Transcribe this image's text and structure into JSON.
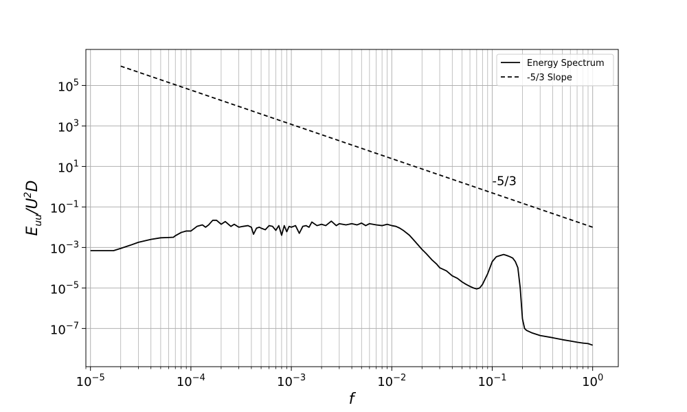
{
  "chart_data": {
    "type": "line",
    "title": "",
    "xlabel": "f",
    "ylabel": "E_uu/U^2D",
    "x_scale": "log",
    "y_scale": "log",
    "xlim": [
      9e-06,
      1.8
    ],
    "ylim": [
      1.3e-09,
      6000000.0
    ],
    "grid": {
      "x": "major+minor",
      "y": "major"
    },
    "legend_position": "top-right",
    "x_ticks": [
      {
        "value": 1e-05,
        "base": "10",
        "exp": "−5"
      },
      {
        "value": 0.0001,
        "base": "10",
        "exp": "−4"
      },
      {
        "value": 0.001,
        "base": "10",
        "exp": "−3"
      },
      {
        "value": 0.01,
        "base": "10",
        "exp": "−2"
      },
      {
        "value": 0.1,
        "base": "10",
        "exp": "−1"
      },
      {
        "value": 1,
        "base": "10",
        "exp": "0"
      }
    ],
    "y_ticks": [
      {
        "value": 1e-07,
        "base": "10",
        "exp": "−7"
      },
      {
        "value": 1e-05,
        "base": "10",
        "exp": "−5"
      },
      {
        "value": 0.001,
        "base": "10",
        "exp": "−3"
      },
      {
        "value": 0.1,
        "base": "10",
        "exp": "−1"
      },
      {
        "value": 10,
        "base": "10",
        "exp": "1"
      },
      {
        "value": 1000,
        "base": "10",
        "exp": "3"
      },
      {
        "value": 100000,
        "base": "10",
        "exp": "5"
      }
    ],
    "series": [
      {
        "name": "Energy Spectrum",
        "style": "solid",
        "color": "#000000",
        "x": [
          1e-05,
          1.7e-05,
          2e-05,
          2.5e-05,
          3e-05,
          4e-05,
          5e-05,
          6e-05,
          6.7e-05,
          7e-05,
          8e-05,
          9e-05,
          0.0001,
          0.000115,
          0.00013,
          0.00014,
          0.00015,
          0.000165,
          0.00018,
          0.0002,
          0.00022,
          0.00025,
          0.00027,
          0.0003,
          0.00033,
          0.00037,
          0.0004,
          0.00042,
          0.00045,
          0.00048,
          0.0005,
          0.00055,
          0.0006,
          0.00065,
          0.0007,
          0.00075,
          0.0008,
          0.00085,
          0.0009,
          0.00095,
          0.001,
          0.0011,
          0.0012,
          0.0013,
          0.0014,
          0.0015,
          0.0016,
          0.0018,
          0.002,
          0.0022,
          0.0025,
          0.0028,
          0.003,
          0.0035,
          0.004,
          0.0045,
          0.005,
          0.0055,
          0.006,
          0.007,
          0.008,
          0.009,
          0.01,
          0.011,
          0.012,
          0.013,
          0.015,
          0.017,
          0.02,
          0.022,
          0.025,
          0.028,
          0.03,
          0.035,
          0.04,
          0.045,
          0.05,
          0.055,
          0.06,
          0.065,
          0.07,
          0.075,
          0.08,
          0.09,
          0.1,
          0.11,
          0.12,
          0.13,
          0.14,
          0.15,
          0.16,
          0.17,
          0.18,
          0.19,
          0.2,
          0.21,
          0.22,
          0.25,
          0.3,
          0.4,
          0.5,
          0.6,
          0.7,
          0.8,
          0.9,
          1.0
        ],
        "y": [
          0.0007,
          0.0007,
          0.0009,
          0.0013,
          0.0018,
          0.0025,
          0.003,
          0.0031,
          0.0032,
          0.0038,
          0.0055,
          0.0065,
          0.0065,
          0.011,
          0.013,
          0.01,
          0.013,
          0.022,
          0.022,
          0.014,
          0.019,
          0.011,
          0.014,
          0.01,
          0.011,
          0.012,
          0.01,
          0.0045,
          0.009,
          0.01,
          0.009,
          0.0075,
          0.012,
          0.011,
          0.007,
          0.012,
          0.004,
          0.012,
          0.006,
          0.011,
          0.01,
          0.012,
          0.005,
          0.011,
          0.012,
          0.01,
          0.018,
          0.012,
          0.014,
          0.012,
          0.02,
          0.012,
          0.015,
          0.013,
          0.015,
          0.013,
          0.016,
          0.012,
          0.015,
          0.013,
          0.012,
          0.014,
          0.012,
          0.011,
          0.009,
          0.007,
          0.004,
          0.002,
          0.0008,
          0.0005,
          0.00025,
          0.00015,
          0.0001,
          7e-05,
          4e-05,
          3e-05,
          2e-05,
          1.5e-05,
          1.2e-05,
          1e-05,
          9e-06,
          1e-05,
          1.5e-05,
          5e-05,
          0.0002,
          0.00035,
          0.0004,
          0.00045,
          0.0004,
          0.00035,
          0.0003,
          0.0002,
          0.0001,
          1e-05,
          3e-07,
          1e-07,
          8e-08,
          6e-08,
          4.5e-08,
          3.5e-08,
          2.8e-08,
          2.4e-08,
          2.1e-08,
          1.9e-08,
          1.8e-08,
          1.5e-08
        ]
      },
      {
        "name": "-5/3 Slope",
        "style": "dashed",
        "color": "#000000",
        "x": [
          2e-05,
          1.0
        ],
        "y": [
          900000,
          0.01
        ]
      }
    ],
    "legend": [
      {
        "label": "Energy Spectrum",
        "style": "solid"
      },
      {
        "label": "-5/3 Slope",
        "style": "dashed"
      }
    ],
    "annotations": [
      {
        "text": "-5/3",
        "x": 0.1,
        "y": 1.2
      }
    ]
  }
}
